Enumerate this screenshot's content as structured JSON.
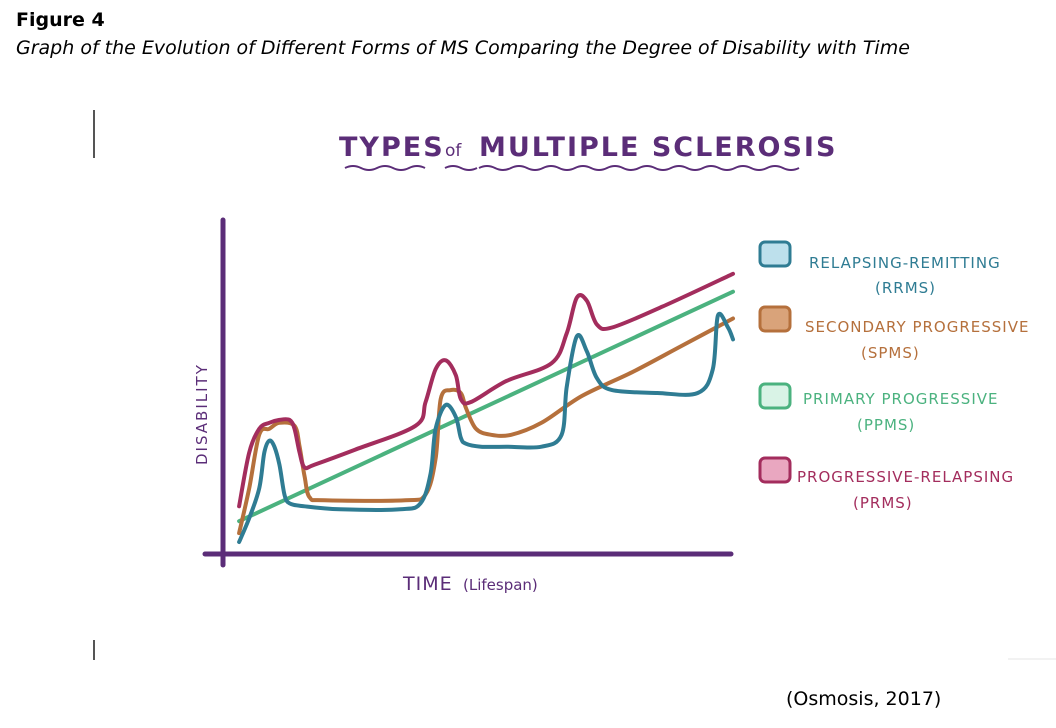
{
  "figure": {
    "label": "Figure 4",
    "caption": "Graph of the Evolution of Different Forms of MS Comparing the Degree of Disability with Time",
    "citation": "(Osmosis, 2017)"
  },
  "chart_data": {
    "type": "line",
    "title": {
      "part1": "TYPES",
      "connector": "of",
      "part2": "MULTIPLE SCLEROSIS"
    },
    "xlabel": {
      "main": "TIME",
      "paren": "(Lifespan)"
    },
    "ylabel": "DISABILITY",
    "xlim": [
      0,
      100
    ],
    "ylim": [
      0,
      100
    ],
    "grid": false,
    "legend_position": "right",
    "series": [
      {
        "key": "ppms",
        "name": "PRIMARY PROGRESSIVE",
        "abbr": "(PPMS)",
        "color": "#4bb27f",
        "fill": "#d9f3e6",
        "points": [
          [
            2,
            9
          ],
          [
            100,
            86
          ]
        ]
      },
      {
        "key": "spms",
        "name": "SECONDARY PROGRESSIVE",
        "abbr": "(SPMS)",
        "color": "#b5703c",
        "fill": "#d9a37a",
        "points": [
          [
            2,
            5
          ],
          [
            4,
            20
          ],
          [
            6,
            38
          ],
          [
            8,
            40
          ],
          [
            10,
            42
          ],
          [
            13,
            41
          ],
          [
            14,
            34
          ],
          [
            15,
            24
          ],
          [
            16,
            17
          ],
          [
            19,
            16
          ],
          [
            35,
            16
          ],
          [
            39,
            18
          ],
          [
            41,
            30
          ],
          [
            42,
            50
          ],
          [
            44,
            53
          ],
          [
            46,
            52
          ],
          [
            47,
            47
          ],
          [
            49,
            40
          ],
          [
            52,
            38
          ],
          [
            56,
            38
          ],
          [
            62,
            42
          ],
          [
            70,
            51
          ],
          [
            80,
            59
          ],
          [
            90,
            68
          ],
          [
            100,
            77
          ]
        ]
      },
      {
        "key": "rrms",
        "name": "RELAPSING-REMITTING",
        "abbr": "(RRMS)",
        "color": "#2f7c93",
        "fill": "#bde0ec",
        "points": [
          [
            2,
            2
          ],
          [
            4,
            10
          ],
          [
            6,
            20
          ],
          [
            7,
            32
          ],
          [
            8,
            36
          ],
          [
            9,
            34
          ],
          [
            10,
            28
          ],
          [
            11,
            18
          ],
          [
            12,
            15
          ],
          [
            15,
            14
          ],
          [
            22,
            13
          ],
          [
            34,
            13
          ],
          [
            38,
            15
          ],
          [
            40,
            25
          ],
          [
            41,
            40
          ],
          [
            43,
            48
          ],
          [
            45,
            44
          ],
          [
            46,
            37
          ],
          [
            47,
            35
          ],
          [
            50,
            34
          ],
          [
            55,
            34
          ],
          [
            62,
            34
          ],
          [
            66,
            38
          ],
          [
            67,
            54
          ],
          [
            69,
            71
          ],
          [
            71,
            66
          ],
          [
            73,
            57
          ],
          [
            76,
            53
          ],
          [
            85,
            52
          ],
          [
            93,
            52
          ],
          [
            96,
            60
          ],
          [
            97,
            78
          ],
          [
            99,
            74
          ],
          [
            100,
            70
          ]
        ]
      },
      {
        "key": "prms",
        "name": "PROGRESSIVE-RELAPSING",
        "abbr": "(PRMS)",
        "color": "#a32d5d",
        "fill": "#e9a7c0",
        "points": [
          [
            2,
            14
          ],
          [
            4,
            32
          ],
          [
            6,
            40
          ],
          [
            8,
            42
          ],
          [
            10,
            43
          ],
          [
            12,
            43
          ],
          [
            13,
            40
          ],
          [
            14,
            32
          ],
          [
            15,
            27
          ],
          [
            17,
            28
          ],
          [
            25,
            33
          ],
          [
            37,
            41
          ],
          [
            39,
            49
          ],
          [
            41,
            60
          ],
          [
            43,
            63
          ],
          [
            45,
            58
          ],
          [
            46,
            50
          ],
          [
            48,
            49
          ],
          [
            55,
            56
          ],
          [
            64,
            62
          ],
          [
            67,
            72
          ],
          [
            69,
            84
          ],
          [
            71,
            83
          ],
          [
            73,
            75
          ],
          [
            76,
            74
          ],
          [
            86,
            81
          ],
          [
            100,
            92
          ]
        ]
      }
    ]
  }
}
